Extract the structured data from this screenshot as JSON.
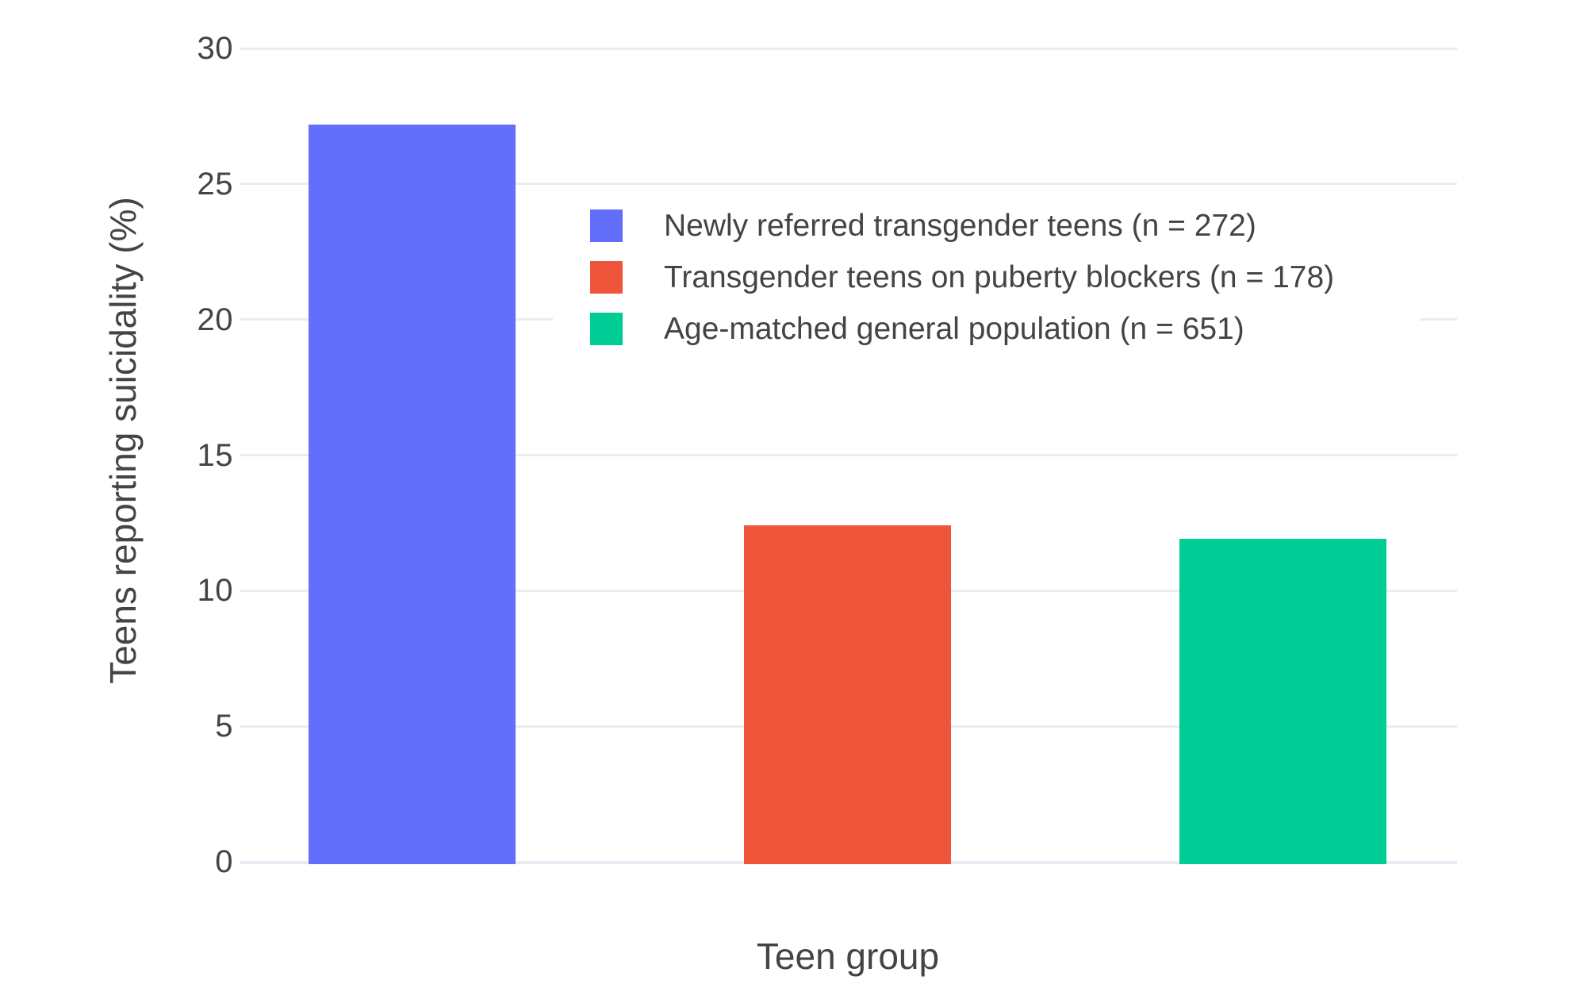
{
  "chart_data": {
    "type": "bar",
    "title": "",
    "xlabel": "Teen group",
    "ylabel": "Teens reporting suicidality (%)",
    "categories": [
      "Newly referred transgender teens (n = 272)",
      "Transgender teens on puberty blockers (n = 178)",
      "Age-matched general population (n = 651)"
    ],
    "values": [
      27.2,
      12.4,
      11.9
    ],
    "ylim": [
      0,
      30
    ],
    "yticks": [
      0,
      5,
      10,
      15,
      20,
      25,
      30
    ],
    "grid": true,
    "x_tick_labels_shown": false,
    "legend_position": "inside-top-center",
    "legend": [
      {
        "label": "Newly referred transgender teens (n = 272)",
        "color": "#636efa"
      },
      {
        "label": "Transgender teens on puberty blockers (n = 178)",
        "color": "#ef553b"
      },
      {
        "label": "Age-matched general population (n = 651)",
        "color": "#00cc96"
      }
    ],
    "colors": {
      "bar_blue": "#636efa",
      "bar_red": "#ef553b",
      "bar_green": "#00cc96",
      "gridline": "#e8edf5",
      "text": "#444444",
      "background": "#ffffff"
    }
  }
}
